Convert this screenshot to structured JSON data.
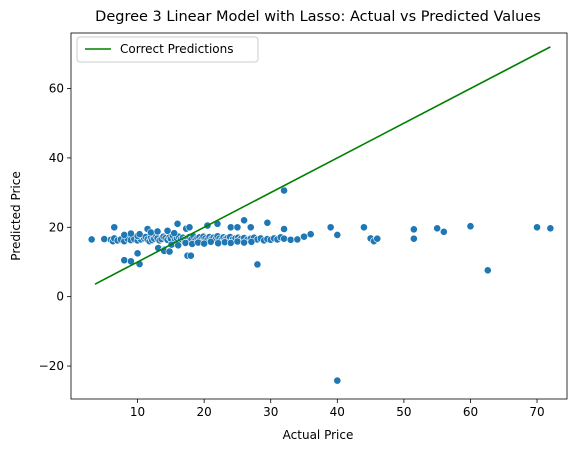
{
  "chart_data": {
    "type": "scatter",
    "title": "Degree 3 Linear Model with Lasso: Actual vs Predicted Values",
    "xlabel": "Actual Price",
    "ylabel": "Predicted Price",
    "xlim": [
      0,
      74.5
    ],
    "ylim": [
      -29.5,
      76
    ],
    "xticks": [
      10,
      20,
      30,
      40,
      50,
      60,
      70
    ],
    "yticks": [
      -20,
      0,
      20,
      40,
      60
    ],
    "grid": false,
    "legend_position": "top-left",
    "colors": {
      "scatter": "#1f77b4",
      "line": "#008000"
    },
    "series": [
      {
        "name": "Correct Predictions",
        "kind": "line",
        "x": [
          3.6,
          72.0
        ],
        "y": [
          3.6,
          72.0
        ]
      },
      {
        "kind": "scatter",
        "x": [
          3.1,
          5.0,
          6.0,
          6.3,
          6.5,
          7.0,
          7.5,
          8.0,
          8.5,
          9.0,
          9.5,
          10.0,
          10.5,
          11.0,
          11.2,
          11.5,
          11.8,
          12.0,
          12.2,
          12.5,
          12.8,
          13.0,
          13.3,
          13.6,
          13.9,
          14.2,
          14.5,
          14.8,
          15.0,
          15.3,
          15.6,
          15.9,
          16.2,
          16.5,
          16.8,
          17.1,
          17.5,
          17.8,
          18.1,
          18.4,
          18.7,
          19.0,
          19.3,
          19.6,
          19.9,
          20.2,
          20.5,
          20.8,
          21.1,
          21.4,
          21.7,
          22.0,
          22.3,
          22.6,
          22.9,
          23.2,
          23.5,
          23.9,
          24.3,
          24.7,
          25.1,
          25.5,
          26.0,
          26.5,
          27.0,
          27.5,
          28.0,
          28.5,
          29.0,
          29.5,
          30.0,
          30.5,
          31.0,
          31.5,
          32.0,
          33.0,
          34.0,
          35.0,
          36.0,
          13.1,
          14.0,
          15.1,
          16.1,
          17.2,
          18.2,
          19.1,
          20.0,
          21.0,
          22.1,
          23.1,
          24.0,
          25.0,
          26.0,
          27.1,
          6.5,
          8.0,
          9.0,
          10.0,
          10.3,
          11.5,
          12.0,
          13.0,
          14.5,
          15.5,
          16.0,
          17.3,
          17.8,
          20.5,
          22.0,
          24.0,
          25.0,
          26.0,
          27.0,
          29.5,
          32.0,
          8.0,
          9.0,
          10.0,
          10.3,
          14.0,
          14.8,
          17.5,
          18.0,
          28.0,
          32.0,
          39.0,
          40.0,
          44.0,
          45.0,
          45.5,
          46.0,
          51.5,
          51.5,
          55.0,
          56.0,
          60.0,
          62.6,
          70.0,
          72.0,
          40.0
        ],
        "y": [
          16.5,
          16.6,
          16.4,
          16.0,
          16.8,
          16.2,
          16.5,
          16.0,
          16.7,
          16.3,
          16.6,
          16.2,
          16.5,
          16.8,
          17.2,
          16.5,
          16.0,
          17.0,
          16.3,
          16.7,
          17.5,
          16.8,
          16.2,
          16.6,
          17.3,
          16.9,
          16.4,
          17.1,
          16.7,
          17.6,
          16.2,
          16.9,
          17.3,
          16.5,
          17.0,
          16.4,
          16.8,
          17.2,
          16.6,
          17.4,
          16.3,
          16.9,
          17.1,
          16.5,
          17.3,
          16.8,
          16.4,
          17.2,
          16.6,
          17.0,
          16.5,
          17.4,
          16.7,
          16.3,
          17.1,
          16.6,
          16.9,
          17.2,
          16.5,
          16.8,
          17.0,
          16.6,
          16.9,
          16.4,
          16.7,
          17.0,
          16.5,
          16.8,
          16.2,
          16.6,
          16.4,
          16.8,
          16.5,
          17.1,
          16.7,
          16.4,
          16.5,
          17.3,
          18.0,
          14.0,
          13.5,
          15.0,
          14.8,
          15.5,
          15.2,
          15.6,
          15.3,
          15.8,
          15.4,
          15.7,
          15.5,
          15.9,
          15.6,
          15.8,
          20.0,
          17.8,
          18.2,
          17.5,
          18.0,
          19.5,
          18.5,
          18.8,
          19.0,
          18.3,
          21.0,
          19.6,
          20.0,
          20.5,
          21.0,
          20.0,
          20.0,
          22.0,
          20.0,
          21.3,
          19.5,
          10.5,
          10.2,
          12.5,
          9.4,
          13.2,
          13.0,
          11.8,
          11.8,
          9.3,
          30.6,
          20.0,
          17.8,
          20.0,
          16.8,
          16.0,
          16.7,
          19.4,
          16.7,
          19.7,
          18.7,
          20.3,
          7.6,
          20.0,
          19.7,
          -24.2
        ]
      }
    ]
  }
}
